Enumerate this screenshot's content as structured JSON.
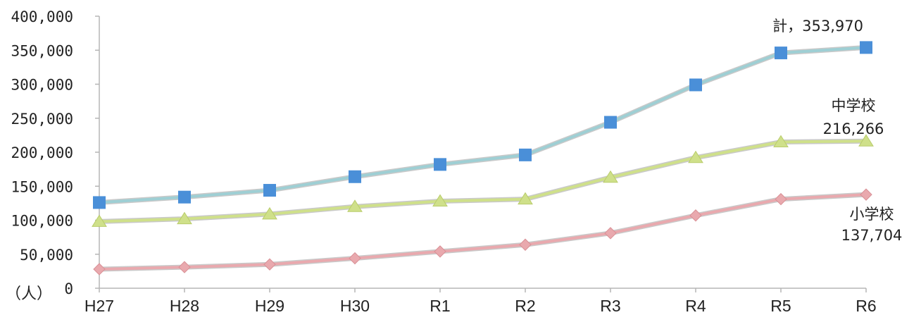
{
  "chart_data": {
    "type": "line",
    "ylabel": "（人）",
    "ylim": [
      0,
      400000
    ],
    "yticks": [
      "0",
      "50,000",
      "100,000",
      "150,000",
      "200,000",
      "250,000",
      "300,000",
      "350,000",
      "400,000"
    ],
    "categories": [
      "H27",
      "H28",
      "H29",
      "H30",
      "R1",
      "R2",
      "R3",
      "R4",
      "R5",
      "R6"
    ],
    "grid": false,
    "series": [
      {
        "name": "計",
        "marker": "square",
        "line_color": "#9ecfd4",
        "marker_color": "#4a8fd8",
        "values": [
          126000,
          134000,
          144000,
          164000,
          182000,
          196000,
          244000,
          299000,
          346000,
          353970
        ],
        "label_lines": [
          "計，353,970"
        ]
      },
      {
        "name": "中学校",
        "marker": "triangle",
        "line_color": "#cfe08a",
        "marker_color": "#cfe08a",
        "values": [
          98000,
          102000,
          109000,
          120000,
          128000,
          131000,
          163000,
          192000,
          215000,
          216266
        ],
        "label_lines": [
          "中学校",
          "216,266"
        ]
      },
      {
        "name": "小学校",
        "marker": "diamond",
        "line_color": "#e9a9ae",
        "marker_color": "#e9a9ae",
        "values": [
          28000,
          31000,
          35000,
          44000,
          54000,
          64000,
          81000,
          107000,
          131000,
          137704
        ],
        "label_lines": [
          "小学校",
          "137,704"
        ]
      }
    ]
  }
}
